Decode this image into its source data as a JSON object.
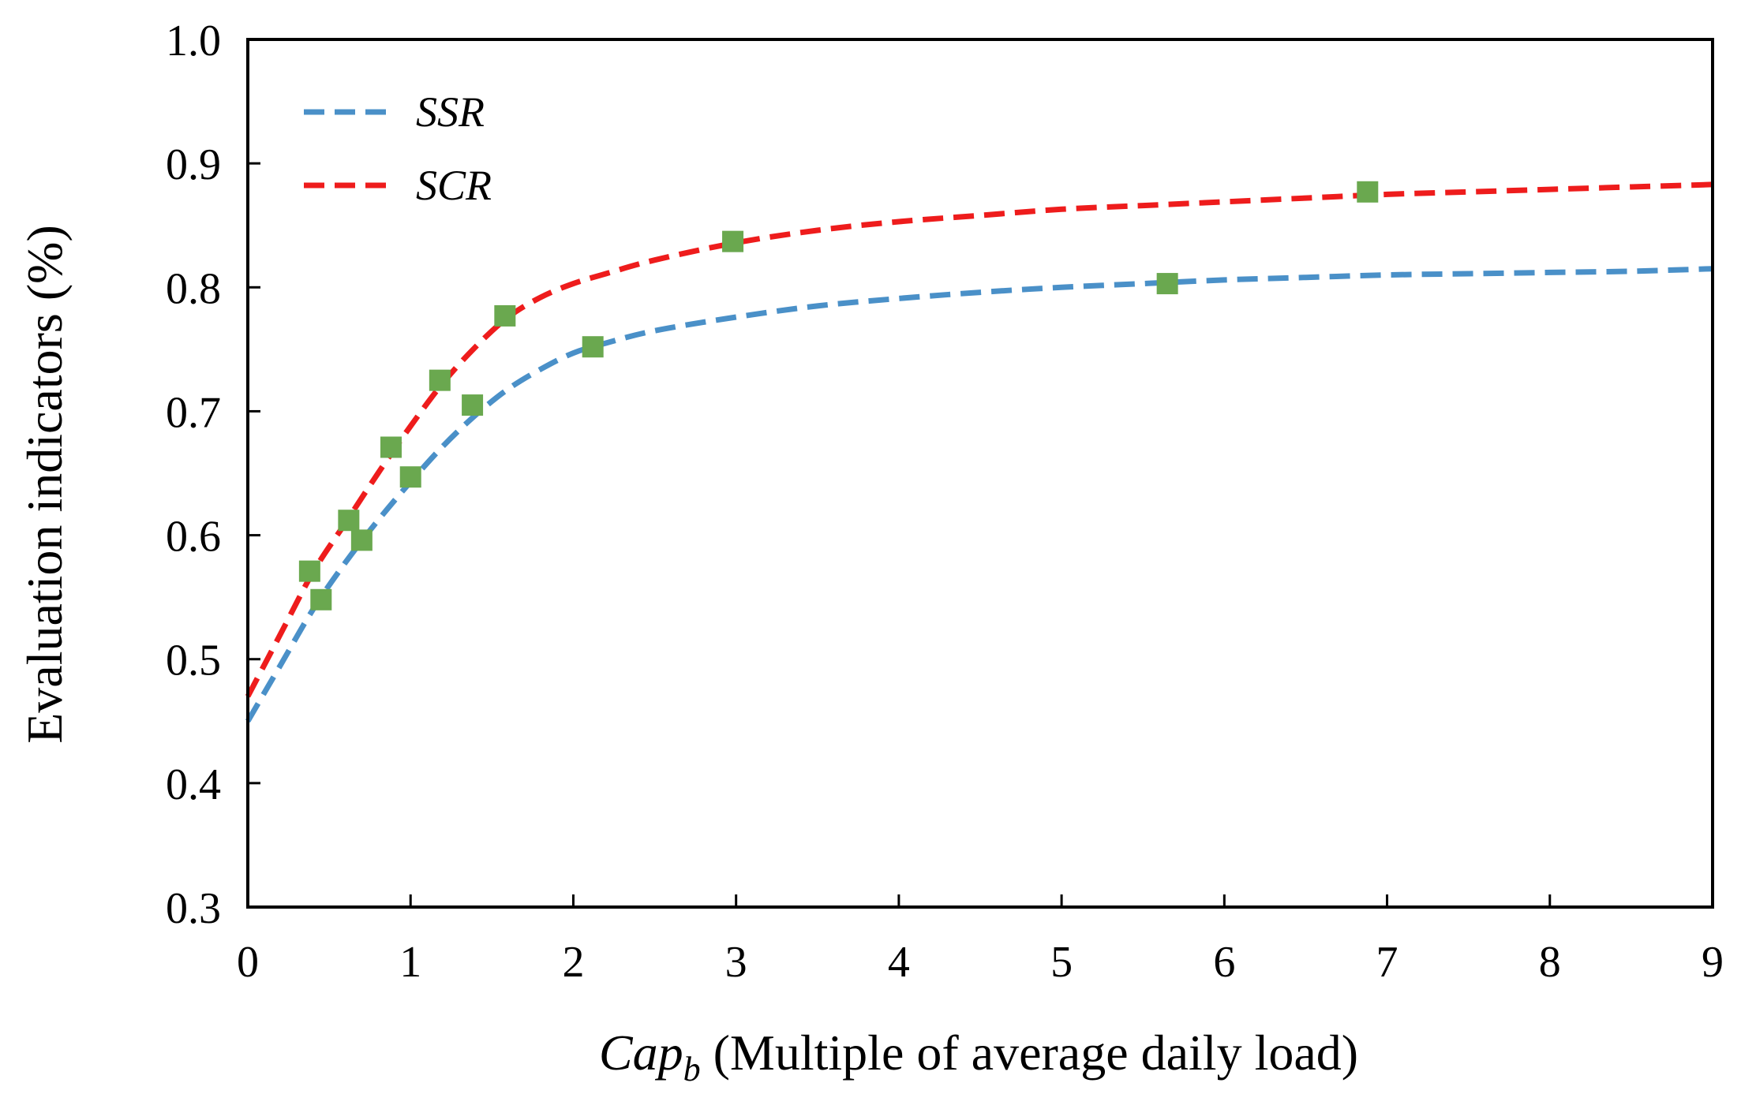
{
  "chart_data": {
    "type": "line",
    "title": "",
    "xlabel": {
      "var_main": "Cap",
      "var_sub": "b",
      "rest": " (Multiple of average daily load)"
    },
    "ylabel": "Evaluation indicators (%)",
    "xlim": [
      0,
      9
    ],
    "ylim": [
      0.3,
      1.0
    ],
    "x_ticks": [
      "0",
      "1",
      "2",
      "3",
      "4",
      "5",
      "6",
      "7",
      "8",
      "9"
    ],
    "y_ticks": [
      "0.3",
      "0.4",
      "0.5",
      "0.6",
      "0.7",
      "0.8",
      "0.9",
      "1.0"
    ],
    "grid": false,
    "legend_position": "top-left",
    "series": [
      {
        "name": "SSR",
        "color": "#4a90c8",
        "style": "dashed",
        "curve": {
          "x": [
            0,
            0.2,
            0.4,
            0.6,
            0.8,
            1.0,
            1.2,
            1.4,
            1.6,
            1.8,
            2.0,
            2.2,
            2.5,
            3.0,
            3.5,
            4.0,
            4.5,
            5.0,
            5.5,
            6.0,
            6.5,
            7.0,
            7.5,
            8.0,
            8.5,
            9.0
          ],
          "y": [
            0.45,
            0.495,
            0.54,
            0.578,
            0.612,
            0.643,
            0.672,
            0.697,
            0.718,
            0.734,
            0.747,
            0.755,
            0.765,
            0.776,
            0.785,
            0.791,
            0.796,
            0.8,
            0.803,
            0.806,
            0.808,
            0.81,
            0.811,
            0.812,
            0.813,
            0.815
          ]
        },
        "markers": {
          "x": [
            0.45,
            0.7,
            1.0,
            1.38,
            2.12,
            5.65
          ],
          "y": [
            0.548,
            0.596,
            0.647,
            0.705,
            0.752,
            0.803
          ]
        }
      },
      {
        "name": "SCR",
        "color": "#ee1c1c",
        "style": "dashed",
        "curve": {
          "x": [
            0,
            0.2,
            0.4,
            0.6,
            0.8,
            1.0,
            1.2,
            1.4,
            1.6,
            1.8,
            2.0,
            2.2,
            2.5,
            3.0,
            3.5,
            4.0,
            4.5,
            5.0,
            5.5,
            6.0,
            6.5,
            7.0,
            7.5,
            8.0,
            8.5,
            9.0
          ],
          "y": [
            0.47,
            0.52,
            0.57,
            0.61,
            0.65,
            0.688,
            0.723,
            0.752,
            0.776,
            0.792,
            0.803,
            0.811,
            0.822,
            0.836,
            0.846,
            0.853,
            0.858,
            0.863,
            0.866,
            0.869,
            0.872,
            0.875,
            0.877,
            0.879,
            0.881,
            0.883
          ]
        },
        "markers": {
          "x": [
            0.38,
            0.62,
            0.88,
            1.18,
            1.58,
            2.98,
            6.88
          ],
          "y": [
            0.571,
            0.612,
            0.671,
            0.725,
            0.777,
            0.837,
            0.877
          ]
        }
      }
    ],
    "marker_color": "#6aa84f",
    "marker_shape": "square"
  }
}
